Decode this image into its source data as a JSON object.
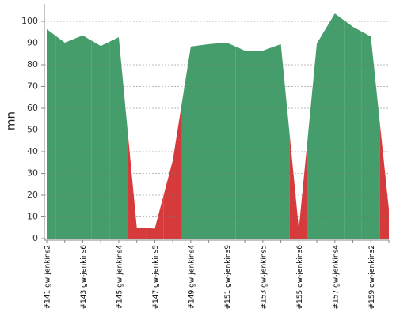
{
  "chart_data": {
    "type": "area",
    "y_label": "mn",
    "categories": [
      "#141 gw-jenkins2",
      null,
      "#143 gw-jenkins6",
      null,
      "#145 gw-jenkins4",
      null,
      "#147 gw-jenkins5",
      null,
      "#149 gw-jenkins4",
      null,
      "#151 gw-jenkins9",
      null,
      "#153 gw-jenkins5",
      null,
      "#155 gw-jenkins6",
      null,
      "#157 gw-jenkins4",
      null,
      "#159 gw-jenkins2",
      null
    ],
    "values": [
      96.4,
      90.2,
      93.5,
      88.7,
      92.7,
      5.1,
      4.6,
      36,
      88.4,
      89.5,
      90.2,
      86.5,
      86.5,
      89.5,
      4.4,
      89.8,
      103.6,
      97.5,
      93,
      13.5
    ],
    "colors": [
      "#459d6c",
      "#459d6c",
      "#459d6c",
      "#459d6c",
      "#459d6c",
      "#d73a3a",
      "#d73a3a",
      "#d73a3a",
      "#459d6c",
      "#459d6c",
      "#459d6c",
      "#459d6c",
      "#459d6c",
      "#459d6c",
      "#d73a3a",
      "#459d6c",
      "#459d6c",
      "#459d6c",
      "#459d6c",
      "#d73a3a"
    ],
    "ylim": [
      0,
      108
    ],
    "yticks": [
      0,
      10,
      20,
      30,
      40,
      50,
      60,
      70,
      80,
      90,
      100
    ],
    "grid": true
  }
}
